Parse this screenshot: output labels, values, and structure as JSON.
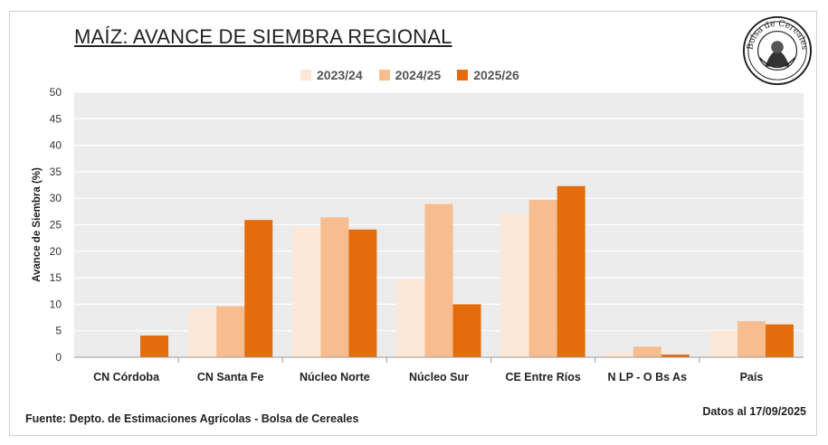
{
  "title": "MAÍZ: AVANCE DE SIEMBRA REGIONAL",
  "source": "Fuente: Depto. de Estimaciones Agrícolas - Bolsa de Cereales",
  "date_note": "Datos al 17/09/2025",
  "logo": {
    "text": "Bolsa de Cereales",
    "icon": "seal-logo"
  },
  "colors": {
    "background": "#ffffff",
    "plot_bg": "#ececec",
    "grid": "#ffffff",
    "series": [
      "#fde7d6",
      "#f8bd8f",
      "#e46c0a"
    ]
  },
  "chart_data": {
    "type": "bar",
    "title": "MAÍZ: AVANCE DE SIEMBRA REGIONAL",
    "xlabel": "",
    "ylabel": "Avance de Siembra (%)",
    "ylim": [
      0,
      50
    ],
    "yticks": [
      0,
      5,
      10,
      15,
      20,
      25,
      30,
      35,
      40,
      45,
      50
    ],
    "grid": true,
    "legend_position": "top",
    "categories": [
      "CN Córdoba",
      "CN Santa Fe",
      "Núcleo Norte",
      "Núcleo Sur",
      "CE Entre Ríos",
      "N LP - O Bs As",
      "País"
    ],
    "series": [
      {
        "name": "2023/24",
        "values": [
          0,
          9.2,
          24.5,
          14.8,
          27.0,
          0.8,
          5.0
        ]
      },
      {
        "name": "2024/25",
        "values": [
          0,
          9.6,
          26.4,
          28.9,
          29.7,
          2.0,
          6.8
        ]
      },
      {
        "name": "2025/26",
        "values": [
          4.1,
          25.9,
          24.1,
          10.0,
          32.3,
          0.5,
          6.2
        ]
      }
    ]
  }
}
